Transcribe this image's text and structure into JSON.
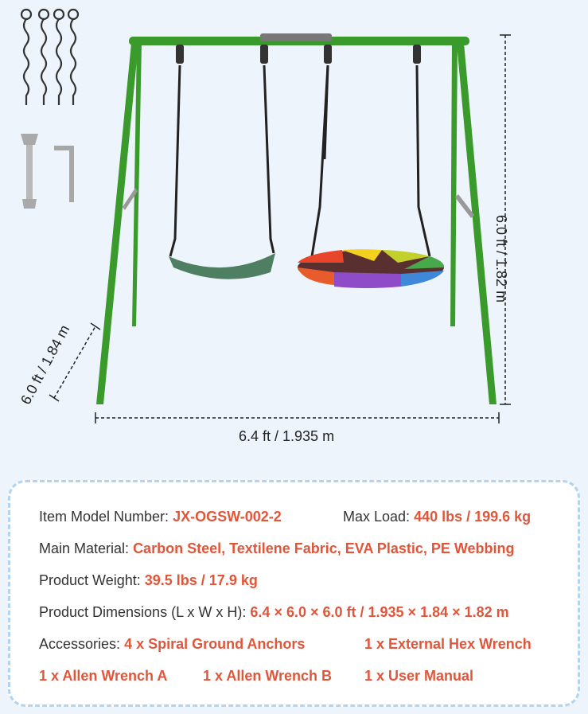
{
  "dimensions": {
    "width": "6.4 ft / 1.935 m",
    "height": "6.0 ft / 1.82 m",
    "depth": "6.0 ft / 1.84 m"
  },
  "specs": {
    "model_label": "Item Model Number:",
    "model_value": "JX-OGSW-002-2",
    "max_load_label": "Max Load:",
    "max_load_value": "440 lbs / 199.6 kg",
    "material_label": "Main Material:",
    "material_value": "Carbon Steel, Textilene Fabric, EVA Plastic, PE Webbing",
    "weight_label": "Product Weight:",
    "weight_value": "39.5 lbs / 17.9 kg",
    "dimensions_label": "Product Dimensions (L x W x H):",
    "dimensions_value": "6.4 × 6.0 × 6.0 ft / 1.935 × 1.84 × 1.82 m",
    "accessories_label": "Accessories:",
    "accessories": [
      "4 x Spiral Ground Anchors",
      "1 x External Hex Wrench",
      "1 x Allen Wrench A",
      "1 x Allen Wrench B",
      "1 x User Manual"
    ]
  },
  "colors": {
    "frame": "#3a9a2c",
    "accent_value": "#e0563a",
    "card_border": "#b3d4ef",
    "background": "#eef4fb"
  }
}
